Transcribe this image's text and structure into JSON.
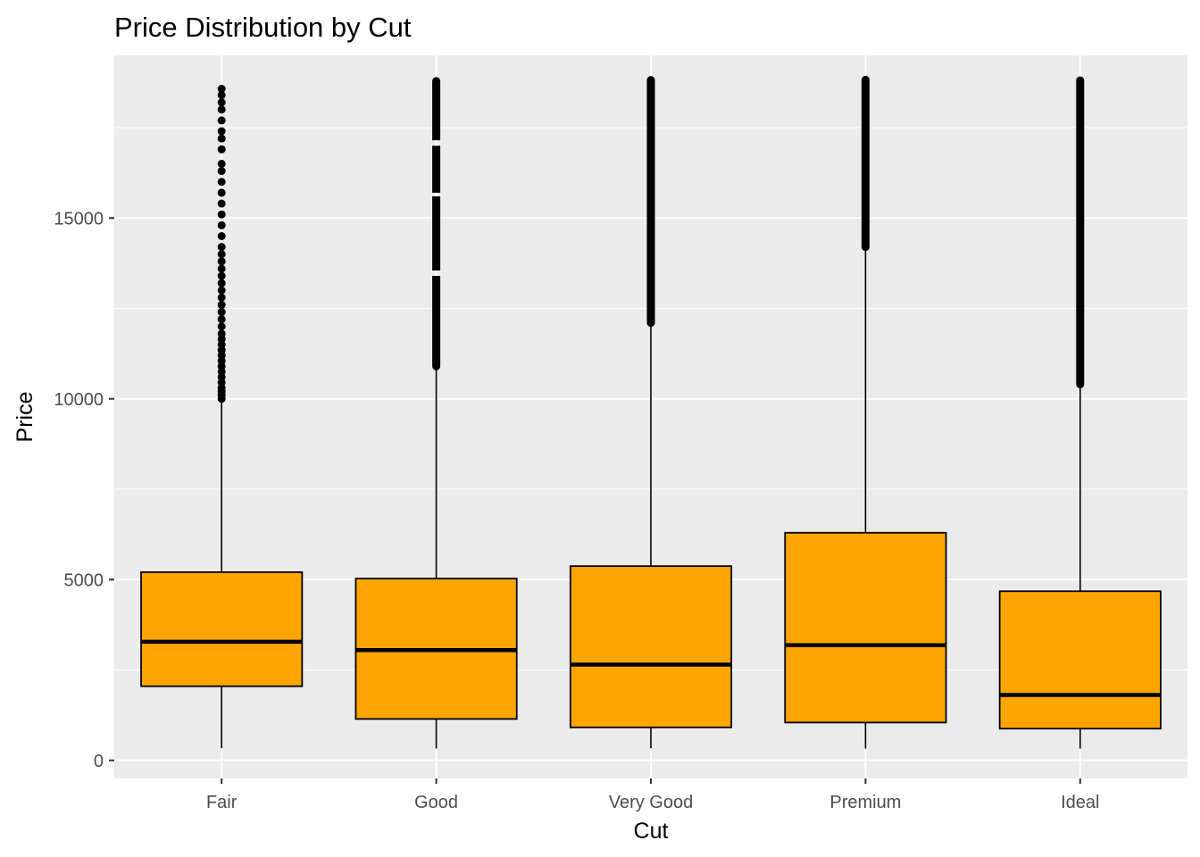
{
  "chart_data": {
    "type": "boxplot",
    "title": "Price Distribution by Cut",
    "xlabel": "Cut",
    "ylabel": "Price",
    "categories": [
      "Fair",
      "Good",
      "Very Good",
      "Premium",
      "Ideal"
    ],
    "ylim": [
      -500,
      19500
    ],
    "yticks": [
      0,
      5000,
      10000,
      15000
    ],
    "ytick_labels": [
      "0",
      "5000",
      "10000",
      "15000"
    ],
    "grid": true,
    "legend": "none",
    "colors": {
      "panel": "#ebebeb",
      "grid": "#ffffff",
      "box_fill": "#ffa500",
      "box_stroke": "#000000",
      "outlier": "#000000"
    },
    "boxes": [
      {
        "name": "Fair",
        "min": 337,
        "q1": 2050,
        "median": 3282,
        "q3": 5206,
        "whisker_high": 9950,
        "outliers": [
          10000,
          10100,
          10200,
          10300,
          10450,
          10600,
          10750,
          10900,
          11050,
          11200,
          11350,
          11500,
          11650,
          11800,
          12000,
          12200,
          12400,
          12600,
          12800,
          13000,
          13200,
          13400,
          13600,
          13800,
          14000,
          14200,
          14500,
          14800,
          15100,
          15400,
          15700,
          16000,
          16300,
          16500,
          16900,
          17200,
          17400,
          17700,
          18000,
          18200,
          18400,
          18574
        ]
      },
      {
        "name": "Good",
        "min": 327,
        "q1": 1145,
        "median": 3050,
        "q3": 5028,
        "whisker_high": 10850,
        "outliers_range": [
          10900,
          18788
        ],
        "gaps": [
          [
            17000,
            17150
          ],
          [
            15600,
            15700
          ],
          [
            13400,
            13550
          ]
        ]
      },
      {
        "name": "Very Good",
        "min": 336,
        "q1": 912,
        "median": 2648,
        "q3": 5373,
        "whisker_high": 12050,
        "outliers_range": [
          12100,
          18818
        ]
      },
      {
        "name": "Premium",
        "min": 326,
        "q1": 1046,
        "median": 3185,
        "q3": 6296,
        "whisker_high": 14150,
        "outliers_range": [
          14200,
          18823
        ]
      },
      {
        "name": "Ideal",
        "min": 326,
        "q1": 878,
        "median": 1810,
        "q3": 4678,
        "whisker_high": 10350,
        "outliers_range": [
          10400,
          18806
        ]
      }
    ]
  }
}
